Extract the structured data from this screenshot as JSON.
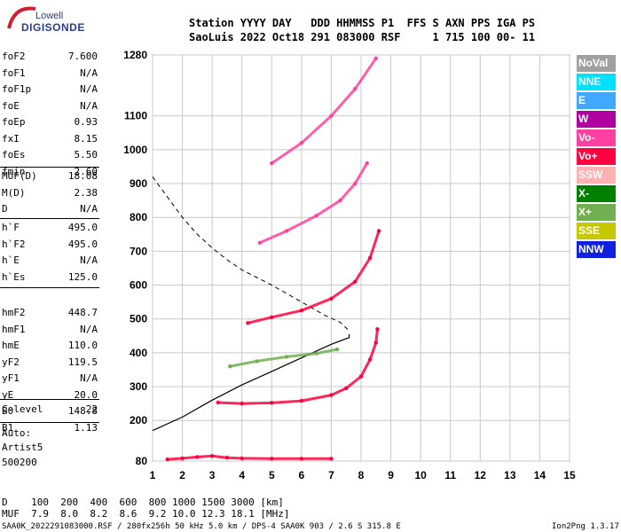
{
  "logo": {
    "brand": "Lowell",
    "product": "DIGISONDE"
  },
  "header": {
    "line1": "Station YYYY DAY   DDD HHMMSS P1  FFS S AXN PPS IGA PS",
    "line2": "SaoLuis 2022 Oct18 291 083000 RSF     1 715 100 00- 11"
  },
  "params": {
    "group1": [
      {
        "name": "foF2",
        "value": "7.600"
      },
      {
        "name": "foF1",
        "value": "N/A"
      },
      {
        "name": "foF1p",
        "value": "N/A"
      },
      {
        "name": "foE",
        "value": "N/A"
      },
      {
        "name": "foEp",
        "value": "0.93"
      },
      {
        "name": "fxI",
        "value": "8.15"
      },
      {
        "name": "foEs",
        "value": "5.50"
      },
      {
        "name": "fmin",
        "value": "2.60"
      }
    ],
    "group2": [
      {
        "name": "MUF(D)",
        "value": "18.08"
      },
      {
        "name": "M(D)",
        "value": "2.38"
      },
      {
        "name": "D",
        "value": "N/A"
      }
    ],
    "group3": [
      {
        "name": "h`F",
        "value": "495.0"
      },
      {
        "name": "h`F2",
        "value": "495.0"
      },
      {
        "name": "h`E",
        "value": "N/A"
      },
      {
        "name": "h`Es",
        "value": "125.0"
      }
    ],
    "group4": [
      {
        "name": "hmF2",
        "value": "448.7"
      },
      {
        "name": "hmF1",
        "value": "N/A"
      },
      {
        "name": "hmE",
        "value": "110.0"
      },
      {
        "name": "yF2",
        "value": "119.5"
      },
      {
        "name": "yF1",
        "value": "N/A"
      },
      {
        "name": "yE",
        "value": "20.0"
      },
      {
        "name": "B0",
        "value": "148.8"
      },
      {
        "name": "B1",
        "value": "1.13"
      }
    ],
    "group5": [
      {
        "name": "C-level",
        "value": "22"
      }
    ]
  },
  "autoscale": {
    "label": "Auto:",
    "artist": "Artist5",
    "version": "500200"
  },
  "legend": [
    {
      "label": "NoVal",
      "color": "#a0a0a0"
    },
    {
      "label": "NNE",
      "color": "#00e0ff"
    },
    {
      "label": "E",
      "color": "#40a8ff"
    },
    {
      "label": "W",
      "color": "#b000a0"
    },
    {
      "label": "Vo-",
      "color": "#ff40a0"
    },
    {
      "label": "Vo+",
      "color": "#ff0040"
    },
    {
      "label": "SSW",
      "color": "#ffb0b0"
    },
    {
      "label": "X-",
      "color": "#008000"
    },
    {
      "label": "X+",
      "color": "#70b050"
    },
    {
      "label": "SSE",
      "color": "#c8c800"
    },
    {
      "label": "NNW",
      "color": "#1020e0"
    }
  ],
  "footer": {
    "d_row": "D    100  200  400  600  800 1000 1500 3000 [km]",
    "muf_row": "MUF  7.9  8.0  8.2  8.6  9.2 10.0 12.3 18.1 [MHz]",
    "file_info": "SAA0K_2022291083000.RSF / 280fx256h 50 kHz 5.0 km / DPS-4 SAA0K 903 / 2.6 S 315.8 E",
    "version": "Ion2Png 1.3.17"
  },
  "chart_data": {
    "type": "scatter",
    "x_ticks": [
      1,
      2,
      3,
      4,
      5,
      6,
      7,
      8,
      9,
      10,
      11,
      12,
      13,
      14,
      15
    ],
    "y_ticks": [
      80,
      200,
      300,
      400,
      500,
      600,
      700,
      800,
      900,
      1000,
      1100,
      1280
    ],
    "xlim": [
      1,
      15
    ],
    "ylim": [
      80,
      1280
    ],
    "grid": true,
    "traces": [
      {
        "name": "Es",
        "color": "#ff0040",
        "points": [
          [
            1.5,
            85
          ],
          [
            2.0,
            88
          ],
          [
            2.5,
            92
          ],
          [
            3.0,
            95
          ],
          [
            3.5,
            90
          ],
          [
            4.0,
            88
          ],
          [
            5.0,
            87
          ],
          [
            6.0,
            87
          ],
          [
            7.0,
            87
          ]
        ]
      },
      {
        "name": "F2 O",
        "color": "#ff0040",
        "points": [
          [
            3.2,
            253
          ],
          [
            4.0,
            250
          ],
          [
            5.0,
            252
          ],
          [
            6.0,
            258
          ],
          [
            7.0,
            275
          ],
          [
            7.5,
            295
          ],
          [
            8.0,
            330
          ],
          [
            8.3,
            380
          ],
          [
            8.5,
            430
          ],
          [
            8.55,
            470
          ]
        ]
      },
      {
        "name": "F2 X",
        "color": "#70b050",
        "points": [
          [
            3.6,
            360
          ],
          [
            4.5,
            375
          ],
          [
            5.5,
            388
          ],
          [
            6.5,
            398
          ],
          [
            7.2,
            410
          ]
        ]
      },
      {
        "name": "2F O",
        "color": "#ff0040",
        "points": [
          [
            4.2,
            488
          ],
          [
            5.0,
            505
          ],
          [
            6.0,
            525
          ],
          [
            7.0,
            560
          ],
          [
            7.8,
            610
          ],
          [
            8.3,
            680
          ],
          [
            8.6,
            760
          ]
        ]
      },
      {
        "name": "3F O",
        "color": "#ff40a0",
        "points": [
          [
            4.6,
            725
          ],
          [
            5.5,
            760
          ],
          [
            6.5,
            805
          ],
          [
            7.3,
            850
          ],
          [
            7.8,
            900
          ],
          [
            8.2,
            960
          ]
        ]
      },
      {
        "name": "4F O",
        "color": "#ff40a0",
        "points": [
          [
            5.0,
            960
          ],
          [
            6.0,
            1020
          ],
          [
            7.0,
            1100
          ],
          [
            7.8,
            1180
          ],
          [
            8.5,
            1270
          ]
        ]
      }
    ],
    "profile_curve": {
      "style": "solid",
      "points": [
        [
          1.0,
          170
        ],
        [
          2.0,
          210
        ],
        [
          3.0,
          260
        ],
        [
          4.0,
          305
        ],
        [
          5.0,
          345
        ],
        [
          6.0,
          385
        ],
        [
          7.0,
          425
        ],
        [
          7.6,
          445
        ],
        [
          7.6,
          455
        ]
      ]
    },
    "profile_dashed": {
      "style": "dashed",
      "points": [
        [
          1.0,
          920
        ],
        [
          1.5,
          860
        ],
        [
          2.0,
          800
        ],
        [
          2.5,
          750
        ],
        [
          3.0,
          710
        ],
        [
          3.5,
          675
        ],
        [
          4.0,
          645
        ],
        [
          5.0,
          600
        ],
        [
          6.0,
          550
        ],
        [
          6.8,
          510
        ],
        [
          7.3,
          490
        ],
        [
          7.6,
          465
        ]
      ]
    }
  }
}
